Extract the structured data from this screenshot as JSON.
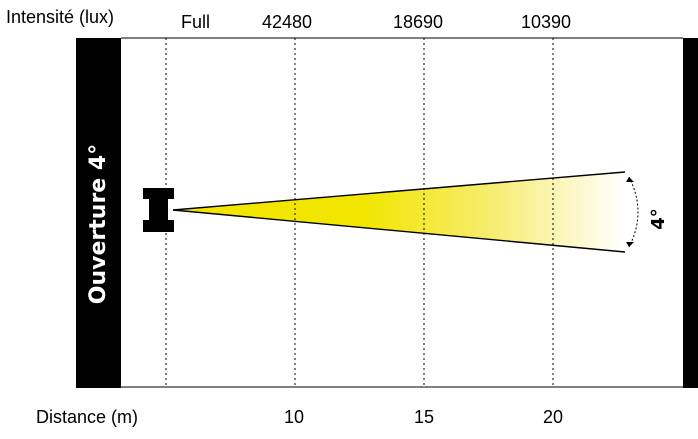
{
  "header": {
    "intensity_label": "Intensité (lux)",
    "intensity_values": [
      "Full",
      "42480",
      "18690",
      "10390"
    ]
  },
  "footer": {
    "distance_label": "Distance (m)",
    "distance_values": [
      "10",
      "15",
      "20"
    ]
  },
  "diagram": {
    "side_title": "Ouverture 4°",
    "beam_angle_label": "4°",
    "colors": {
      "band": "#000000",
      "beam_start": "#f2e600",
      "beam_end": "#ffffff",
      "grid": "#000000"
    }
  }
}
